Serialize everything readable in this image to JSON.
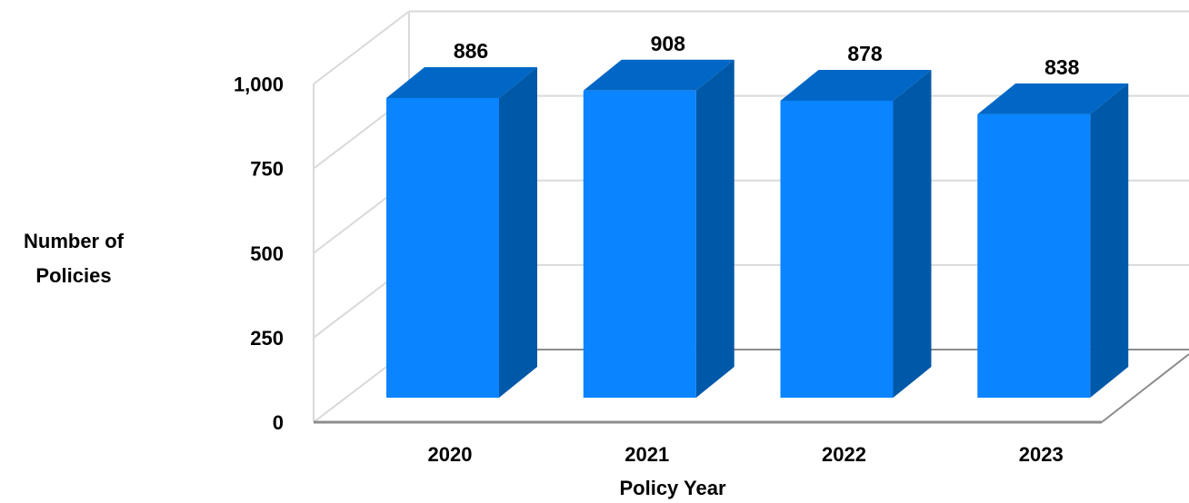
{
  "chart_data": {
    "type": "bar",
    "style": "3d-column",
    "categories": [
      "2020",
      "2021",
      "2022",
      "2023"
    ],
    "values": [
      886,
      908,
      878,
      838
    ],
    "data_labels": [
      "886",
      "908",
      "878",
      "838"
    ],
    "ylim": [
      0,
      1000
    ],
    "y_ticks": [
      0,
      250,
      500,
      750,
      1000
    ],
    "y_tick_labels": [
      "0",
      "250",
      "500",
      "750",
      "1,000"
    ],
    "xlabel": "Policy Year",
    "ylabel_lines": [
      "Number of",
      "Policies"
    ],
    "grid": true,
    "legend": "none",
    "colors": {
      "bar_front": "#0a84ff",
      "bar_side": "#0058a8",
      "bar_top": "#0067c6",
      "grid": "#d9d9d9",
      "floor_line": "#8c8c8c"
    }
  }
}
